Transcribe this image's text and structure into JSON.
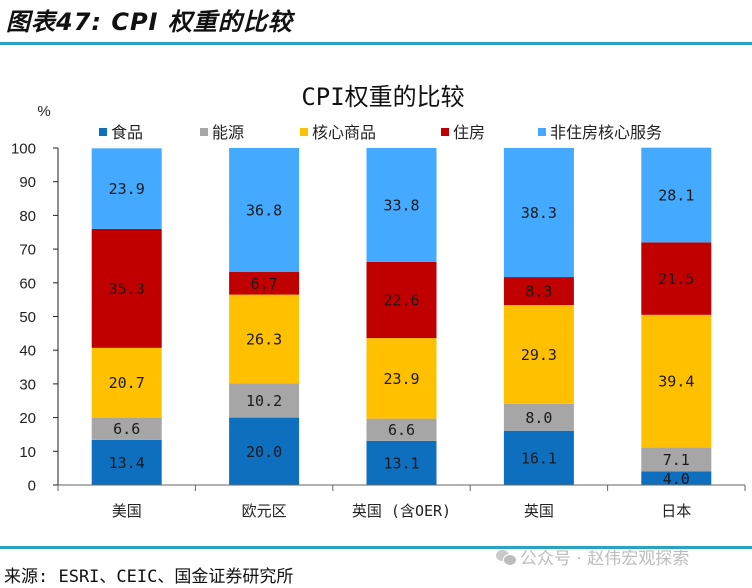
{
  "figure": {
    "title": "图表47: CPI 权重的比较",
    "source": "来源: ESRI、CEIC、国金证券研究所",
    "watermark": "公众号 · 赵伟宏观探索"
  },
  "chart_data": {
    "type": "bar",
    "stacked": true,
    "title": "CPI权重的比较",
    "ylabel": "%",
    "xlabel": "",
    "ylim": [
      0,
      100
    ],
    "yticks": [
      0,
      10,
      20,
      30,
      40,
      50,
      60,
      70,
      80,
      90,
      100
    ],
    "grid": false,
    "legend": "top",
    "categories": [
      "美国",
      "欧元区",
      "英国 (含OER)",
      "英国",
      "日本"
    ],
    "series": [
      {
        "name": "食品",
        "color": "#0f6fbf",
        "values": [
          13.4,
          20.0,
          13.1,
          16.1,
          4.0
        ]
      },
      {
        "name": "能源",
        "color": "#a6a6a6",
        "values": [
          6.6,
          10.2,
          6.6,
          8.0,
          7.1
        ]
      },
      {
        "name": "核心商品",
        "color": "#ffc000",
        "values": [
          20.7,
          26.3,
          23.9,
          29.3,
          39.4
        ]
      },
      {
        "name": "住房",
        "color": "#c00000",
        "values": [
          35.3,
          6.7,
          22.6,
          8.3,
          21.5
        ]
      },
      {
        "name": "非住房核心服务",
        "color": "#43aaff",
        "values": [
          23.9,
          36.8,
          33.8,
          38.3,
          28.1
        ]
      }
    ],
    "labels": [
      [
        "13.4",
        "20.0",
        "13.1",
        "16.1",
        "4.0"
      ],
      [
        "6.6",
        "10.2",
        "6.6",
        "8.0",
        "7.1"
      ],
      [
        "20.7",
        "26.3",
        "23.9",
        "29.3",
        "39.4"
      ],
      [
        "35.3",
        "6.7",
        "22.6",
        "8.3",
        "21.5"
      ],
      [
        "23.9",
        "36.8",
        "33.8",
        "38.3",
        "28.1"
      ]
    ]
  }
}
